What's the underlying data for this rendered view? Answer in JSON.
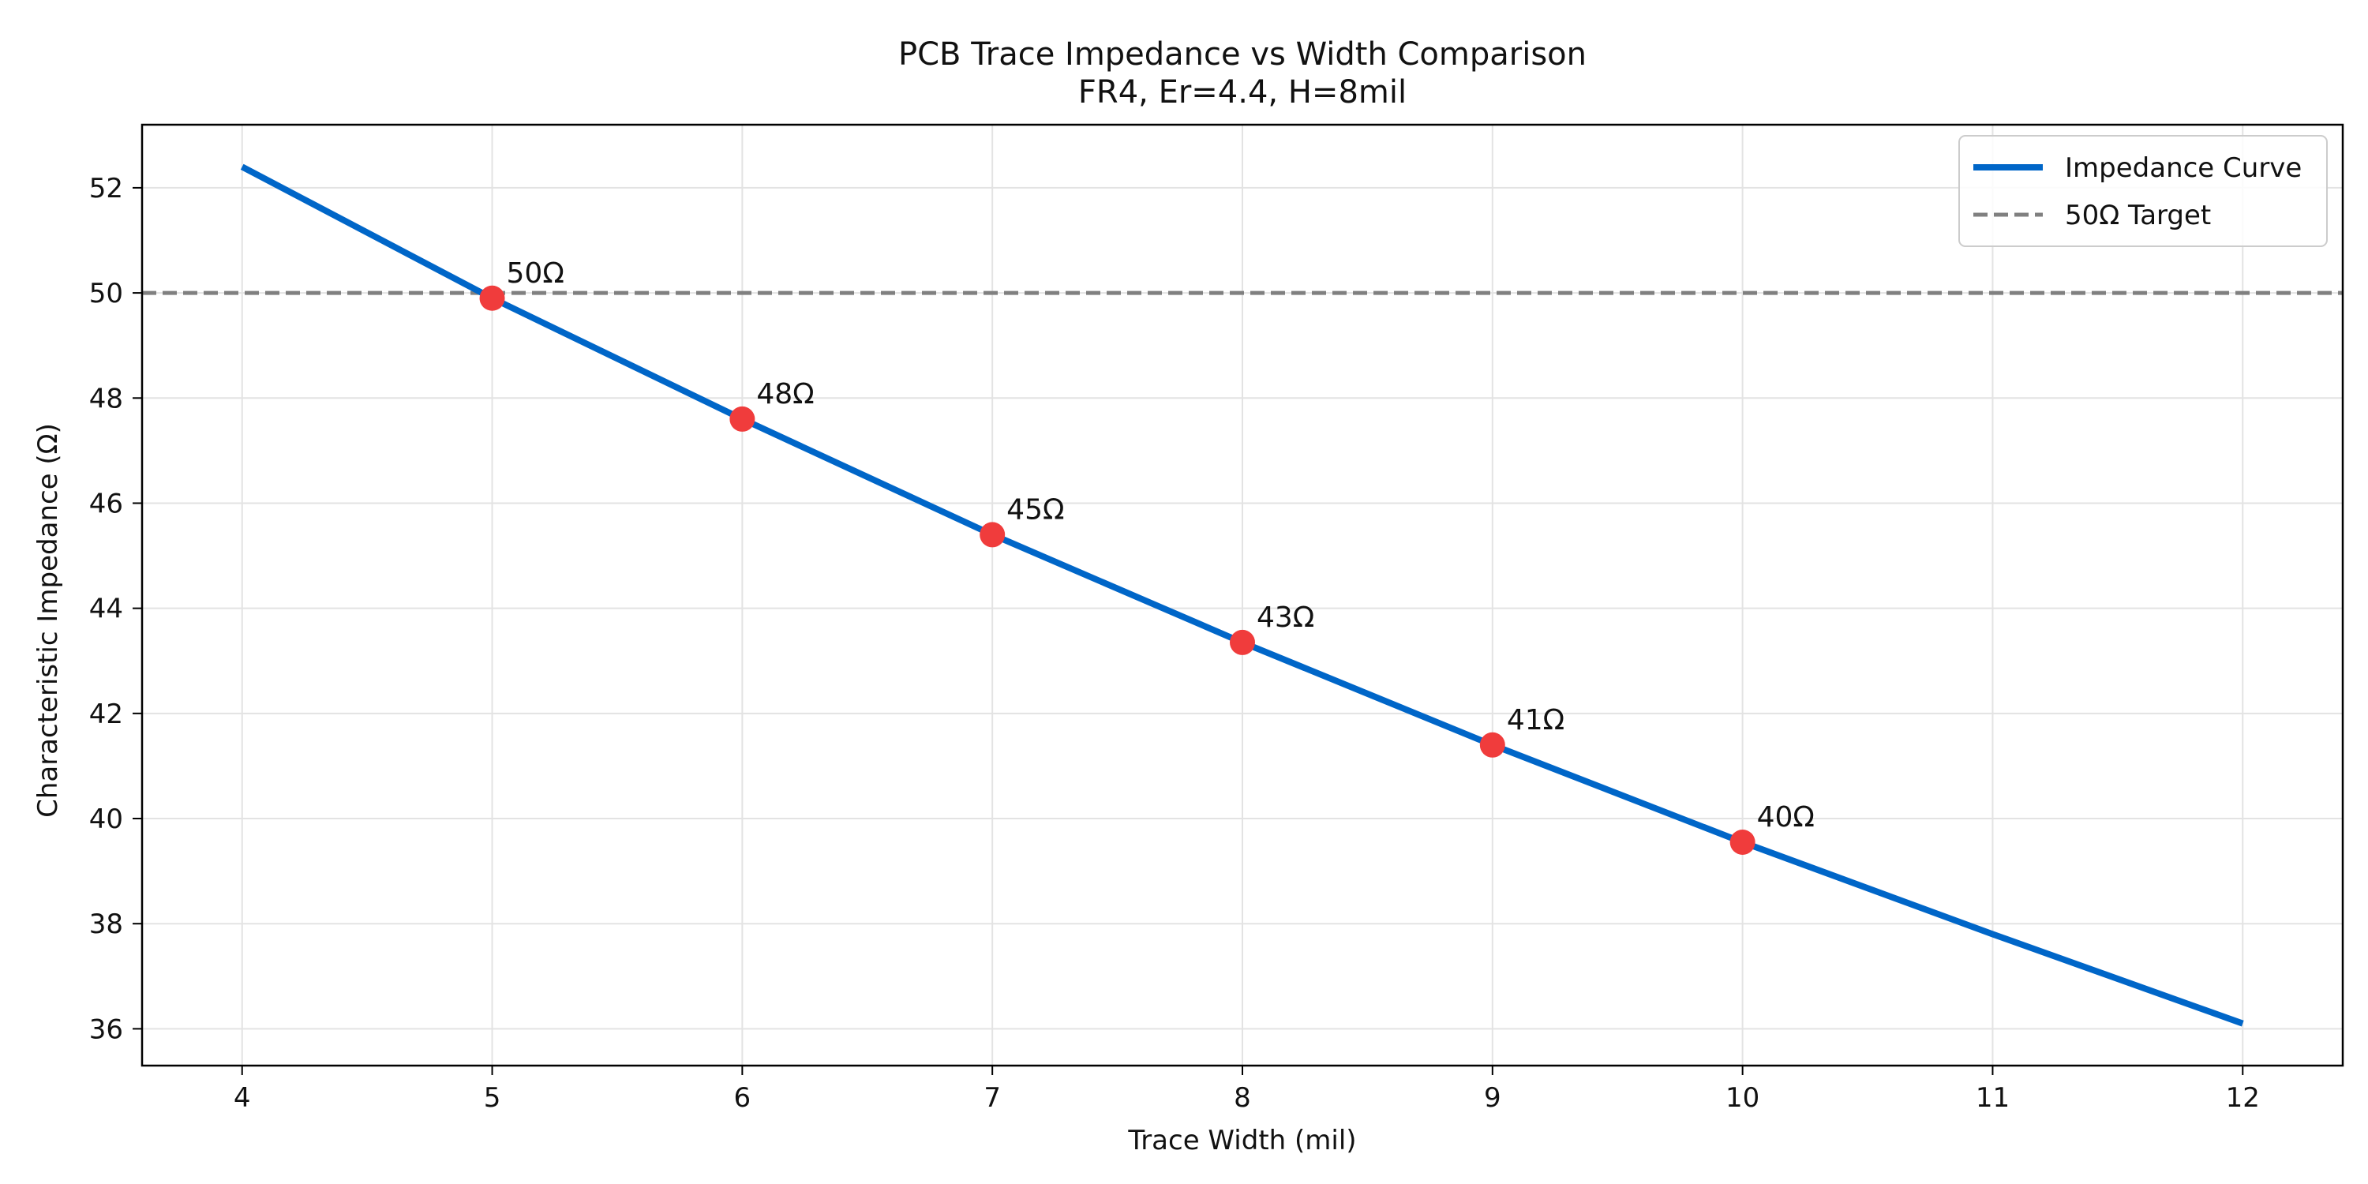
{
  "chart_data": {
    "type": "line",
    "title": "PCB Trace Impedance vs Width Comparison",
    "subtitle": "FR4, Er=4.4, H=8mil",
    "xlabel": "Trace Width (mil)",
    "ylabel": "Characteristic Impedance (Ω)",
    "xlim": [
      3.6,
      12.4
    ],
    "ylim": [
      35.3,
      53.2
    ],
    "xticks": [
      4,
      5,
      6,
      7,
      8,
      9,
      10,
      11,
      12
    ],
    "yticks": [
      36,
      38,
      40,
      42,
      44,
      46,
      48,
      50,
      52
    ],
    "grid": true,
    "legend_position": "top-right",
    "series": [
      {
        "name": "Impedance Curve",
        "color": "#0066c8",
        "style": "solid",
        "x": [
          4,
          5,
          6,
          7,
          8,
          9,
          10,
          11,
          12
        ],
        "y": [
          52.4,
          49.9,
          47.6,
          45.4,
          43.35,
          41.4,
          39.55,
          37.8,
          36.1
        ]
      }
    ],
    "reference_lines": [
      {
        "name": "50Ω Target",
        "y": 50,
        "color": "#808080",
        "style": "dashed"
      }
    ],
    "points": {
      "color": "#f03c3c",
      "x": [
        5,
        6,
        7,
        8,
        9,
        10
      ],
      "y": [
        49.9,
        47.6,
        45.4,
        43.35,
        41.4,
        39.55
      ],
      "labels": [
        "50Ω",
        "48Ω",
        "45Ω",
        "43Ω",
        "41Ω",
        "40Ω"
      ]
    }
  }
}
